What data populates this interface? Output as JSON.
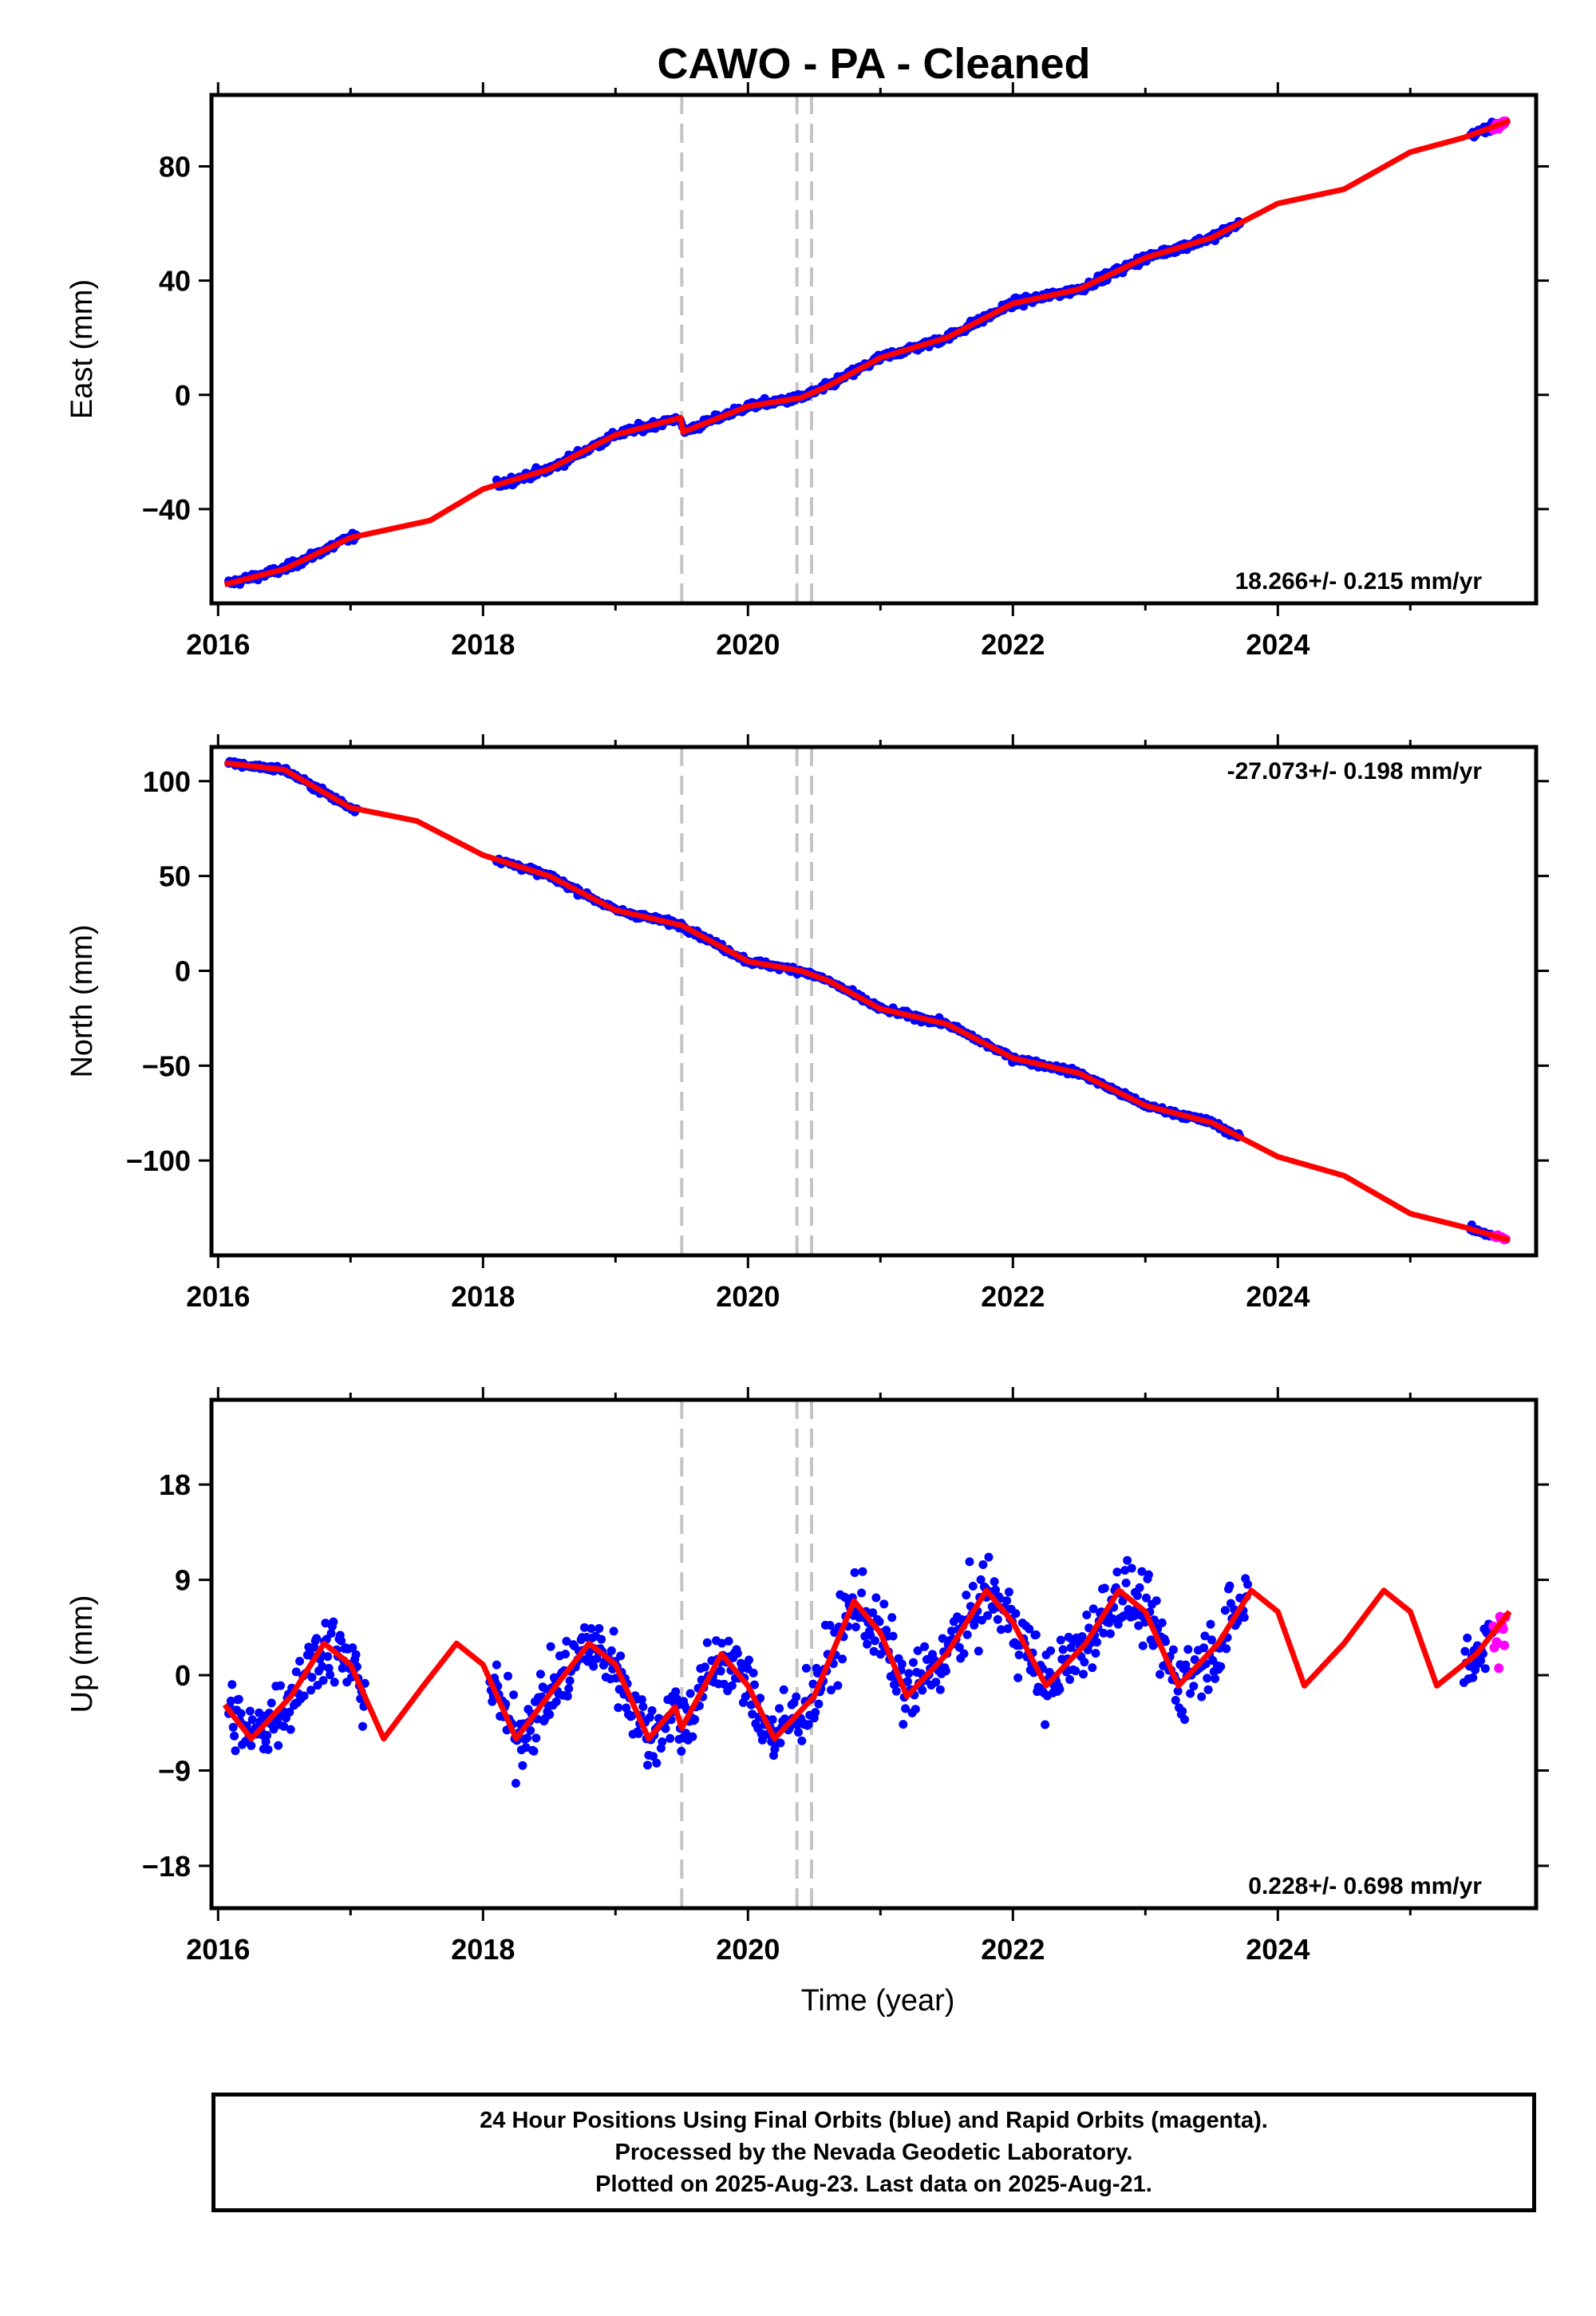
{
  "chart_data": [
    {
      "type": "scatter",
      "title": "CAWO  - PA - Cleaned",
      "xlabel": "",
      "ylabel": "East (mm)",
      "xlim": [
        2015.95,
        2025.95
      ],
      "ylim": [
        -73,
        105
      ],
      "xticks": [
        2016,
        2018,
        2020,
        2022,
        2024
      ],
      "yticks": [
        -40,
        0,
        40,
        80
      ],
      "ytick_labels": [
        "−40",
        "0",
        "40",
        "80"
      ],
      "rate_label": "18.266+/- 0.215 mm/yr",
      "rate_position": "bottom-right",
      "offset_lines": [
        2019.5,
        2020.37,
        2020.48
      ],
      "gaps": [
        [
          2017.05,
          2018.1
        ],
        [
          2023.72,
          2025.45
        ]
      ],
      "spread": 1.8,
      "model_curve": [
        [
          2016.0,
          -67
        ],
        [
          2016.5,
          -61
        ],
        [
          2017.0,
          -50
        ],
        [
          2017.6,
          -44
        ],
        [
          2018.0,
          -33
        ],
        [
          2018.5,
          -26
        ],
        [
          2019.0,
          -14
        ],
        [
          2019.49,
          -8
        ],
        [
          2019.51,
          -13
        ],
        [
          2020.0,
          -4
        ],
        [
          2020.4,
          -1
        ],
        [
          2020.6,
          3
        ],
        [
          2021.0,
          13
        ],
        [
          2021.5,
          20
        ],
        [
          2022.0,
          32
        ],
        [
          2022.5,
          37
        ],
        [
          2023.0,
          48
        ],
        [
          2023.5,
          55
        ],
        [
          2024.0,
          67
        ],
        [
          2024.5,
          72
        ],
        [
          2025.0,
          85
        ],
        [
          2025.4,
          90
        ],
        [
          2025.75,
          96
        ]
      ],
      "series": [
        {
          "name": "Final Orbits",
          "color": "#0000ff"
        },
        {
          "name": "Rapid Orbits",
          "color": "#ff00ff"
        },
        {
          "name": "Model",
          "color": "#ff0000"
        }
      ]
    },
    {
      "type": "scatter",
      "title": "",
      "xlabel": "",
      "ylabel": "North (mm)",
      "xlim": [
        2015.95,
        2025.95
      ],
      "ylim": [
        -150,
        118
      ],
      "xticks": [
        2016,
        2018,
        2020,
        2022,
        2024
      ],
      "yticks": [
        -100,
        -50,
        0,
        50,
        100
      ],
      "ytick_labels": [
        "−100",
        "−50",
        "0",
        "50",
        "100"
      ],
      "rate_label": "-27.073+/- 0.198 mm/yr",
      "rate_position": "top-right",
      "offset_lines": [
        2019.5,
        2020.37,
        2020.48
      ],
      "gaps": [
        [
          2017.05,
          2018.1
        ],
        [
          2023.72,
          2025.45
        ]
      ],
      "spread": 2.0,
      "model_curve": [
        [
          2016.0,
          110
        ],
        [
          2016.5,
          106
        ],
        [
          2017.0,
          86
        ],
        [
          2017.5,
          79
        ],
        [
          2018.0,
          61
        ],
        [
          2018.5,
          50
        ],
        [
          2019.0,
          32
        ],
        [
          2019.5,
          24
        ],
        [
          2020.0,
          5
        ],
        [
          2020.4,
          0
        ],
        [
          2020.6,
          -5
        ],
        [
          2021.0,
          -20
        ],
        [
          2021.5,
          -28
        ],
        [
          2022.0,
          -46
        ],
        [
          2022.5,
          -54
        ],
        [
          2023.0,
          -71
        ],
        [
          2023.5,
          -80
        ],
        [
          2024.0,
          -98
        ],
        [
          2024.5,
          -108
        ],
        [
          2025.0,
          -128
        ],
        [
          2025.4,
          -135
        ],
        [
          2025.75,
          -142
        ]
      ],
      "series": [
        {
          "name": "Final Orbits",
          "color": "#0000ff"
        },
        {
          "name": "Rapid Orbits",
          "color": "#ff00ff"
        },
        {
          "name": "Model",
          "color": "#ff0000"
        }
      ]
    },
    {
      "type": "scatter",
      "title": "",
      "xlabel": "Time (year)",
      "ylabel": "Up (mm)",
      "xlim": [
        2015.95,
        2025.95
      ],
      "ylim": [
        -22,
        26
      ],
      "xticks": [
        2016,
        2018,
        2020,
        2022,
        2024
      ],
      "yticks": [
        -18,
        -9,
        0,
        9,
        18
      ],
      "ytick_labels": [
        "−18",
        "−9",
        "0",
        "9",
        "18"
      ],
      "rate_label": "0.228+/- 0.698 mm/yr",
      "rate_position": "bottom-right",
      "offset_lines": [
        2019.5,
        2020.37,
        2020.48
      ],
      "gaps": [
        [
          2017.12,
          2018.05
        ],
        [
          2023.78,
          2025.4
        ]
      ],
      "spread": 4.2,
      "model_curve": [
        [
          2016.0,
          -2
        ],
        [
          2016.25,
          -6
        ],
        [
          2016.55,
          -2
        ],
        [
          2016.8,
          3
        ],
        [
          2017.0,
          1
        ],
        [
          2017.25,
          -6
        ],
        [
          2017.55,
          -1
        ],
        [
          2017.8,
          3
        ],
        [
          2018.0,
          1
        ],
        [
          2018.25,
          -6
        ],
        [
          2018.55,
          -1
        ],
        [
          2018.8,
          3
        ],
        [
          2019.0,
          1
        ],
        [
          2019.25,
          -6
        ],
        [
          2019.45,
          -3
        ],
        [
          2019.5,
          -5
        ],
        [
          2019.8,
          2
        ],
        [
          2020.0,
          -1
        ],
        [
          2020.2,
          -6
        ],
        [
          2020.5,
          -2
        ],
        [
          2020.8,
          7
        ],
        [
          2021.0,
          4
        ],
        [
          2021.2,
          -2
        ],
        [
          2021.5,
          2
        ],
        [
          2021.8,
          8
        ],
        [
          2022.0,
          5
        ],
        [
          2022.25,
          -1
        ],
        [
          2022.55,
          3
        ],
        [
          2022.8,
          8
        ],
        [
          2023.0,
          6
        ],
        [
          2023.25,
          -1
        ],
        [
          2023.55,
          3
        ],
        [
          2023.8,
          8
        ],
        [
          2024.0,
          6
        ],
        [
          2024.2,
          -1
        ],
        [
          2024.5,
          3
        ],
        [
          2024.8,
          8
        ],
        [
          2025.0,
          6
        ],
        [
          2025.2,
          -1
        ],
        [
          2025.5,
          2
        ],
        [
          2025.75,
          6
        ]
      ],
      "series": [
        {
          "name": "Final Orbits",
          "color": "#0000ff"
        },
        {
          "name": "Rapid Orbits",
          "color": "#ff00ff"
        },
        {
          "name": "Model",
          "color": "#ff0000"
        }
      ]
    }
  ],
  "footer": {
    "line1": "24 Hour Positions Using Final Orbits (blue) and Rapid Orbits (magenta).",
    "line2": "Processed by the Nevada Geodetic Laboratory.",
    "line3": "Plotted on 2025-Aug-23. Last data on 2025-Aug-21."
  }
}
